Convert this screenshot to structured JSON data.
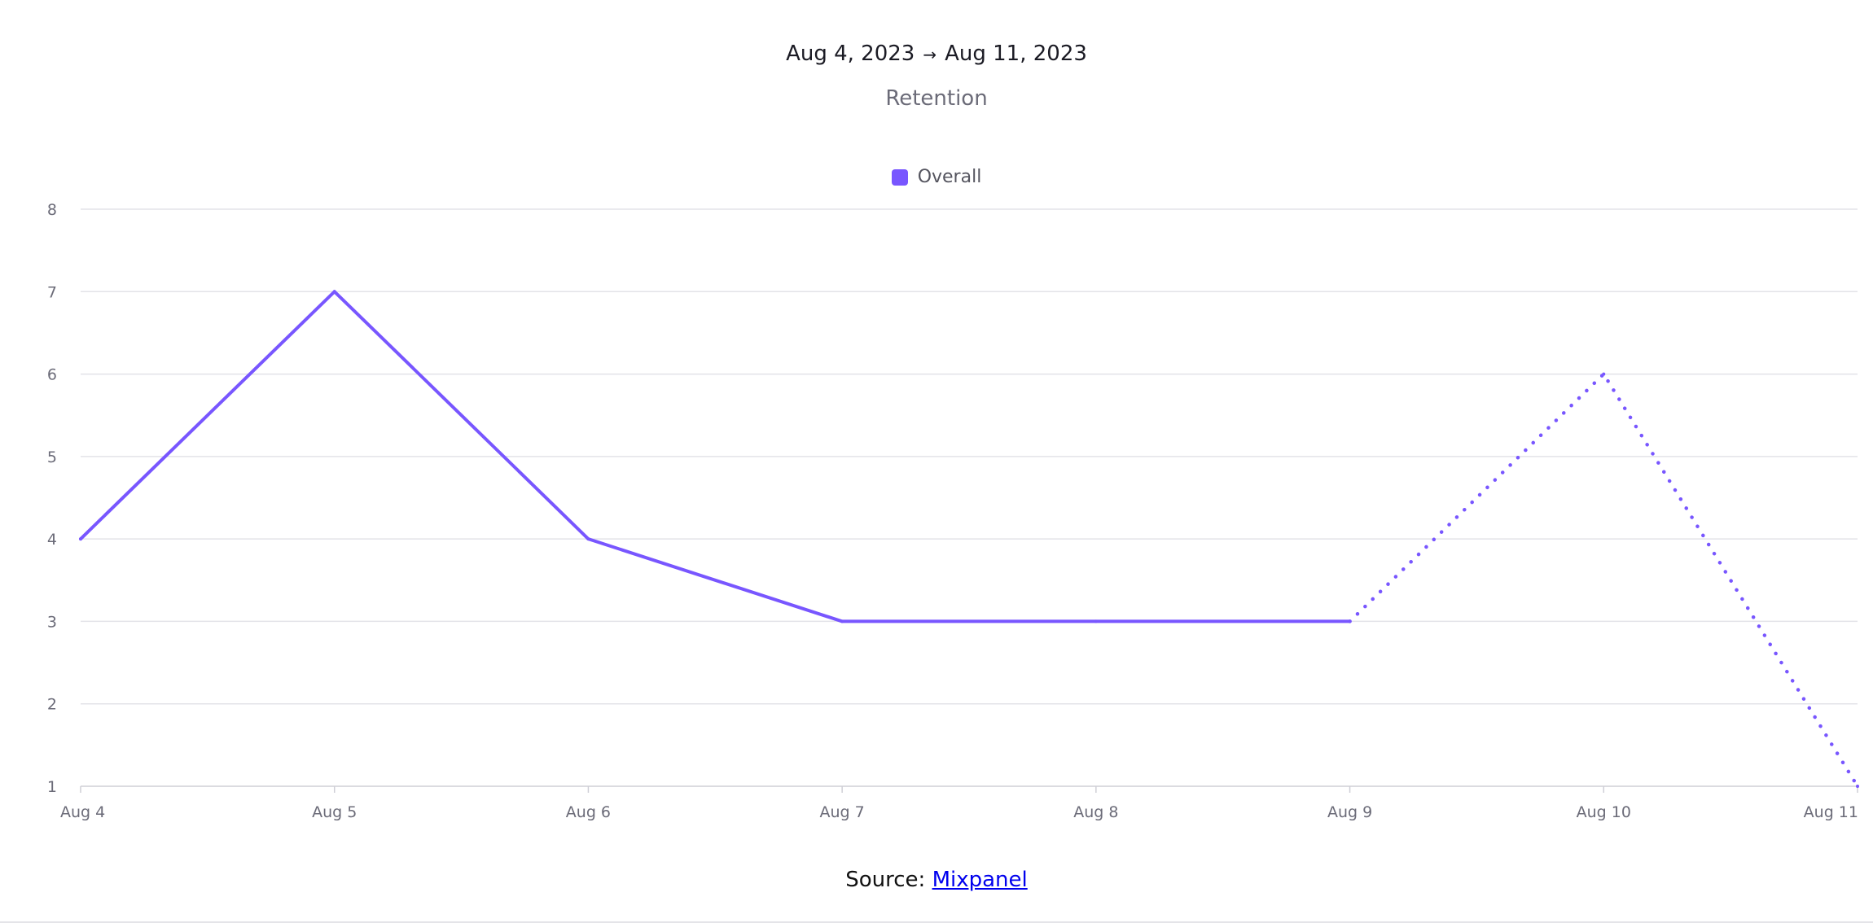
{
  "header": {
    "date_start": "Aug 4, 2023",
    "arrow": "→",
    "date_end": "Aug 11, 2023",
    "title": "Retention"
  },
  "legend": {
    "items": [
      {
        "label": "Overall",
        "color": "#7856ff"
      }
    ]
  },
  "chart_data": {
    "type": "line",
    "title": "Retention",
    "xlabel": "",
    "ylabel": "",
    "categories": [
      "Aug 4",
      "Aug 5",
      "Aug 6",
      "Aug 7",
      "Aug 8",
      "Aug 9",
      "Aug 10",
      "Aug 11"
    ],
    "ylim": [
      1,
      8
    ],
    "yticks": [
      1,
      2,
      3,
      4,
      5,
      6,
      7,
      8
    ],
    "grid": true,
    "legend_position": "top-center",
    "series": [
      {
        "name": "Overall",
        "color": "#7856ff",
        "values": [
          4,
          7,
          4,
          3,
          3,
          3,
          6,
          1
        ],
        "dashed_from_index": 5
      }
    ]
  },
  "footer": {
    "source_prefix": "Source:",
    "source_link": "Mixpanel"
  },
  "colors": {
    "grid": "#e3e3e8",
    "axis": "#cfcfd6",
    "line": "#7856ff"
  }
}
